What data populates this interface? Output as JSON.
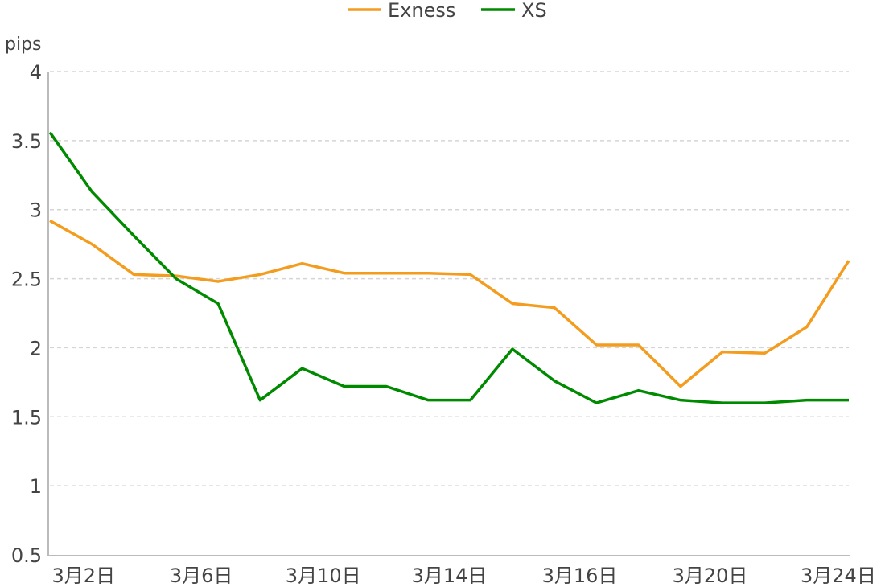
{
  "chart_data": {
    "type": "line",
    "title": "",
    "ylabel": "pips",
    "xlabel": "",
    "ylim": [
      0.5,
      4
    ],
    "yticks": [
      0.5,
      1,
      1.5,
      2,
      2.5,
      3,
      3.5,
      4
    ],
    "x_tick_labels": [
      "3月2日",
      "3月6日",
      "3月10日",
      "3月14日",
      "3月16日",
      "3月20日",
      "3月24日"
    ],
    "grid": "horizontal dashed",
    "legend": "top-center",
    "series": [
      {
        "name": "Exness",
        "color": "#f39c1e",
        "values": [
          2.92,
          2.75,
          2.53,
          2.52,
          2.48,
          2.53,
          2.61,
          2.54,
          2.54,
          2.54,
          2.53,
          2.32,
          2.29,
          2.02,
          2.02,
          1.72,
          1.97,
          1.96,
          2.15,
          2.63
        ]
      },
      {
        "name": "XS",
        "color": "#008a00",
        "values": [
          3.56,
          3.13,
          2.81,
          2.5,
          2.32,
          1.62,
          1.85,
          1.72,
          1.72,
          1.62,
          1.62,
          1.99,
          1.76,
          1.6,
          1.69,
          1.62,
          1.6,
          1.6,
          1.62,
          1.62
        ]
      }
    ]
  }
}
